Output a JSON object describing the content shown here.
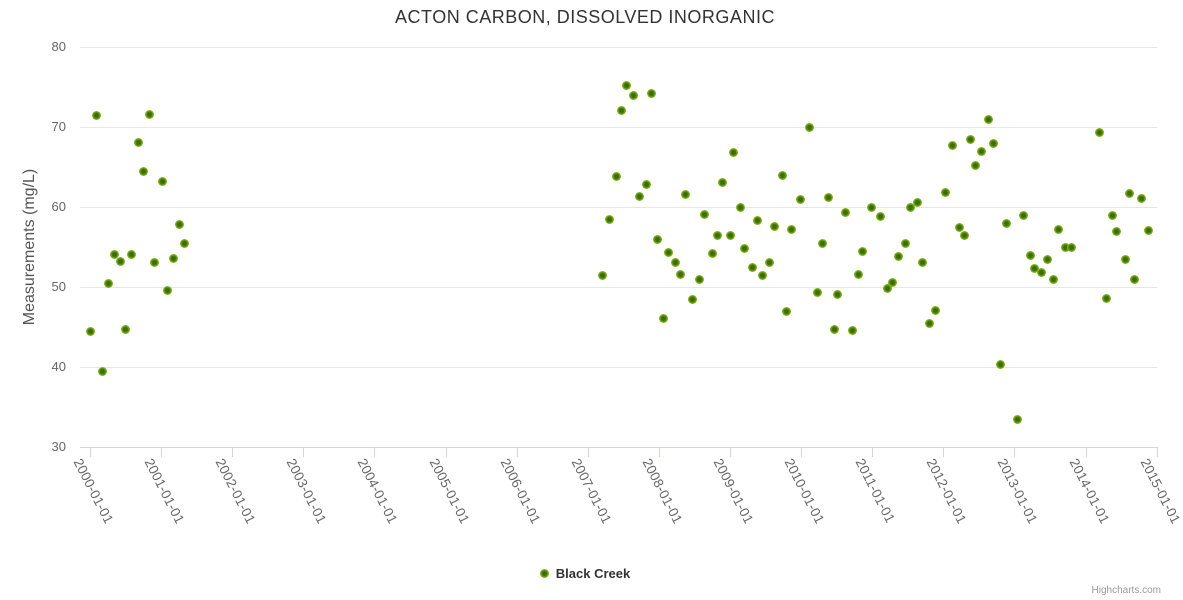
{
  "chart": {
    "credits": "Highcharts.com"
  },
  "colors": {
    "marker_outer": "#84bf20",
    "marker_inner": "#3f6b06",
    "title_text": "#333333",
    "axis_label": "#666666",
    "axis_line": "#ccd6eb",
    "gridline": "#e6e6e6",
    "credits_text": "#999999"
  },
  "chart_data": {
    "type": "scatter",
    "title": "ACTON CARBON, DISSOLVED INORGANIC",
    "xlabel": "",
    "ylabel": "Measurements (mg/L)",
    "ylim": [
      30,
      80
    ],
    "yticks": [
      30,
      40,
      50,
      60,
      70,
      80
    ],
    "xlim_decimal_years": [
      1999.87,
      2015.18
    ],
    "xticks": [
      {
        "year": 2000,
        "label": "2000-01-01"
      },
      {
        "year": 2001,
        "label": "2001-01-01"
      },
      {
        "year": 2002,
        "label": "2002-01-01"
      },
      {
        "year": 2003,
        "label": "2003-01-01"
      },
      {
        "year": 2004,
        "label": "2004-01-01"
      },
      {
        "year": 2005,
        "label": "2005-01-01"
      },
      {
        "year": 2006,
        "label": "2006-01-01"
      },
      {
        "year": 2007,
        "label": "2007-01-01"
      },
      {
        "year": 2008,
        "label": "2008-01-01"
      },
      {
        "year": 2009,
        "label": "2009-01-01"
      },
      {
        "year": 2010,
        "label": "2010-01-01"
      },
      {
        "year": 2011,
        "label": "2011-01-01"
      },
      {
        "year": 2012,
        "label": "2012-01-01"
      },
      {
        "year": 2013,
        "label": "2013-01-01"
      },
      {
        "year": 2014,
        "label": "2014-01-01"
      },
      {
        "year": 2015,
        "label": "2015-01-01"
      }
    ],
    "grid": "horizontal-only",
    "legend_position": "bottom-center",
    "series": [
      {
        "name": "Black Creek",
        "marker_color": "#84bf20",
        "points": [
          [
            2000.01,
            44.5
          ],
          [
            2000.09,
            71.4
          ],
          [
            2000.17,
            39.4
          ],
          [
            2000.26,
            50.5
          ],
          [
            2000.35,
            54.1
          ],
          [
            2000.43,
            53.2
          ],
          [
            2000.5,
            44.7
          ],
          [
            2000.58,
            54.1
          ],
          [
            2000.68,
            68.1
          ],
          [
            2000.75,
            64.4
          ],
          [
            2000.84,
            71.6
          ],
          [
            2000.91,
            53.1
          ],
          [
            2001.02,
            63.2
          ],
          [
            2001.09,
            49.6
          ],
          [
            2001.17,
            53.6
          ],
          [
            2001.26,
            57.8
          ],
          [
            2001.33,
            55.5
          ],
          [
            2007.21,
            51.4
          ],
          [
            2007.31,
            58.5
          ],
          [
            2007.4,
            63.8
          ],
          [
            2007.47,
            72.1
          ],
          [
            2007.55,
            75.2
          ],
          [
            2007.64,
            74.0
          ],
          [
            2007.73,
            61.3
          ],
          [
            2007.82,
            62.8
          ],
          [
            2007.89,
            74.2
          ],
          [
            2007.98,
            55.9
          ],
          [
            2008.07,
            46.1
          ],
          [
            2008.14,
            54.3
          ],
          [
            2008.23,
            53.1
          ],
          [
            2008.31,
            51.6
          ],
          [
            2008.38,
            61.6
          ],
          [
            2008.47,
            48.5
          ],
          [
            2008.57,
            50.9
          ],
          [
            2008.64,
            59.1
          ],
          [
            2008.75,
            54.2
          ],
          [
            2008.82,
            56.5
          ],
          [
            2008.9,
            63.1
          ],
          [
            2009.0,
            56.4
          ],
          [
            2009.05,
            66.8
          ],
          [
            2009.15,
            59.9
          ],
          [
            2009.2,
            54.8
          ],
          [
            2009.31,
            52.4
          ],
          [
            2009.38,
            58.3
          ],
          [
            2009.45,
            51.5
          ],
          [
            2009.56,
            53.1
          ],
          [
            2009.62,
            57.6
          ],
          [
            2009.74,
            64.0
          ],
          [
            2009.8,
            47.0
          ],
          [
            2009.87,
            57.2
          ],
          [
            2009.99,
            61.0
          ],
          [
            2010.12,
            70.0
          ],
          [
            2010.23,
            49.3
          ],
          [
            2010.3,
            55.4
          ],
          [
            2010.38,
            61.2
          ],
          [
            2010.47,
            44.7
          ],
          [
            2010.51,
            49.1
          ],
          [
            2010.63,
            59.3
          ],
          [
            2010.72,
            44.6
          ],
          [
            2010.8,
            51.6
          ],
          [
            2010.87,
            54.5
          ],
          [
            2010.99,
            60.0
          ],
          [
            2011.12,
            58.8
          ],
          [
            2011.21,
            49.8
          ],
          [
            2011.28,
            50.6
          ],
          [
            2011.37,
            53.8
          ],
          [
            2011.47,
            55.4
          ],
          [
            2011.54,
            60.0
          ],
          [
            2011.64,
            60.6
          ],
          [
            2011.7,
            53.1
          ],
          [
            2011.8,
            45.5
          ],
          [
            2011.89,
            47.1
          ],
          [
            2012.03,
            61.8
          ],
          [
            2012.13,
            67.7
          ],
          [
            2012.22,
            57.4
          ],
          [
            2012.3,
            56.4
          ],
          [
            2012.38,
            68.5
          ],
          [
            2012.45,
            65.2
          ],
          [
            2012.54,
            67.0
          ],
          [
            2012.63,
            70.9
          ],
          [
            2012.71,
            68.0
          ],
          [
            2012.8,
            40.3
          ],
          [
            2012.89,
            58.0
          ],
          [
            2013.04,
            33.4
          ],
          [
            2013.12,
            59.0
          ],
          [
            2013.23,
            54.0
          ],
          [
            2013.28,
            52.3
          ],
          [
            2013.38,
            51.8
          ],
          [
            2013.46,
            53.4
          ],
          [
            2013.55,
            51.0
          ],
          [
            2013.62,
            57.2
          ],
          [
            2013.72,
            55.0
          ],
          [
            2013.8,
            55.0
          ],
          [
            2014.2,
            69.3
          ],
          [
            2014.3,
            48.6
          ],
          [
            2014.38,
            59.0
          ],
          [
            2014.44,
            57.0
          ],
          [
            2014.56,
            53.4
          ],
          [
            2014.62,
            61.7
          ],
          [
            2014.69,
            51.0
          ],
          [
            2014.79,
            61.1
          ],
          [
            2014.88,
            57.1
          ]
        ]
      }
    ]
  }
}
